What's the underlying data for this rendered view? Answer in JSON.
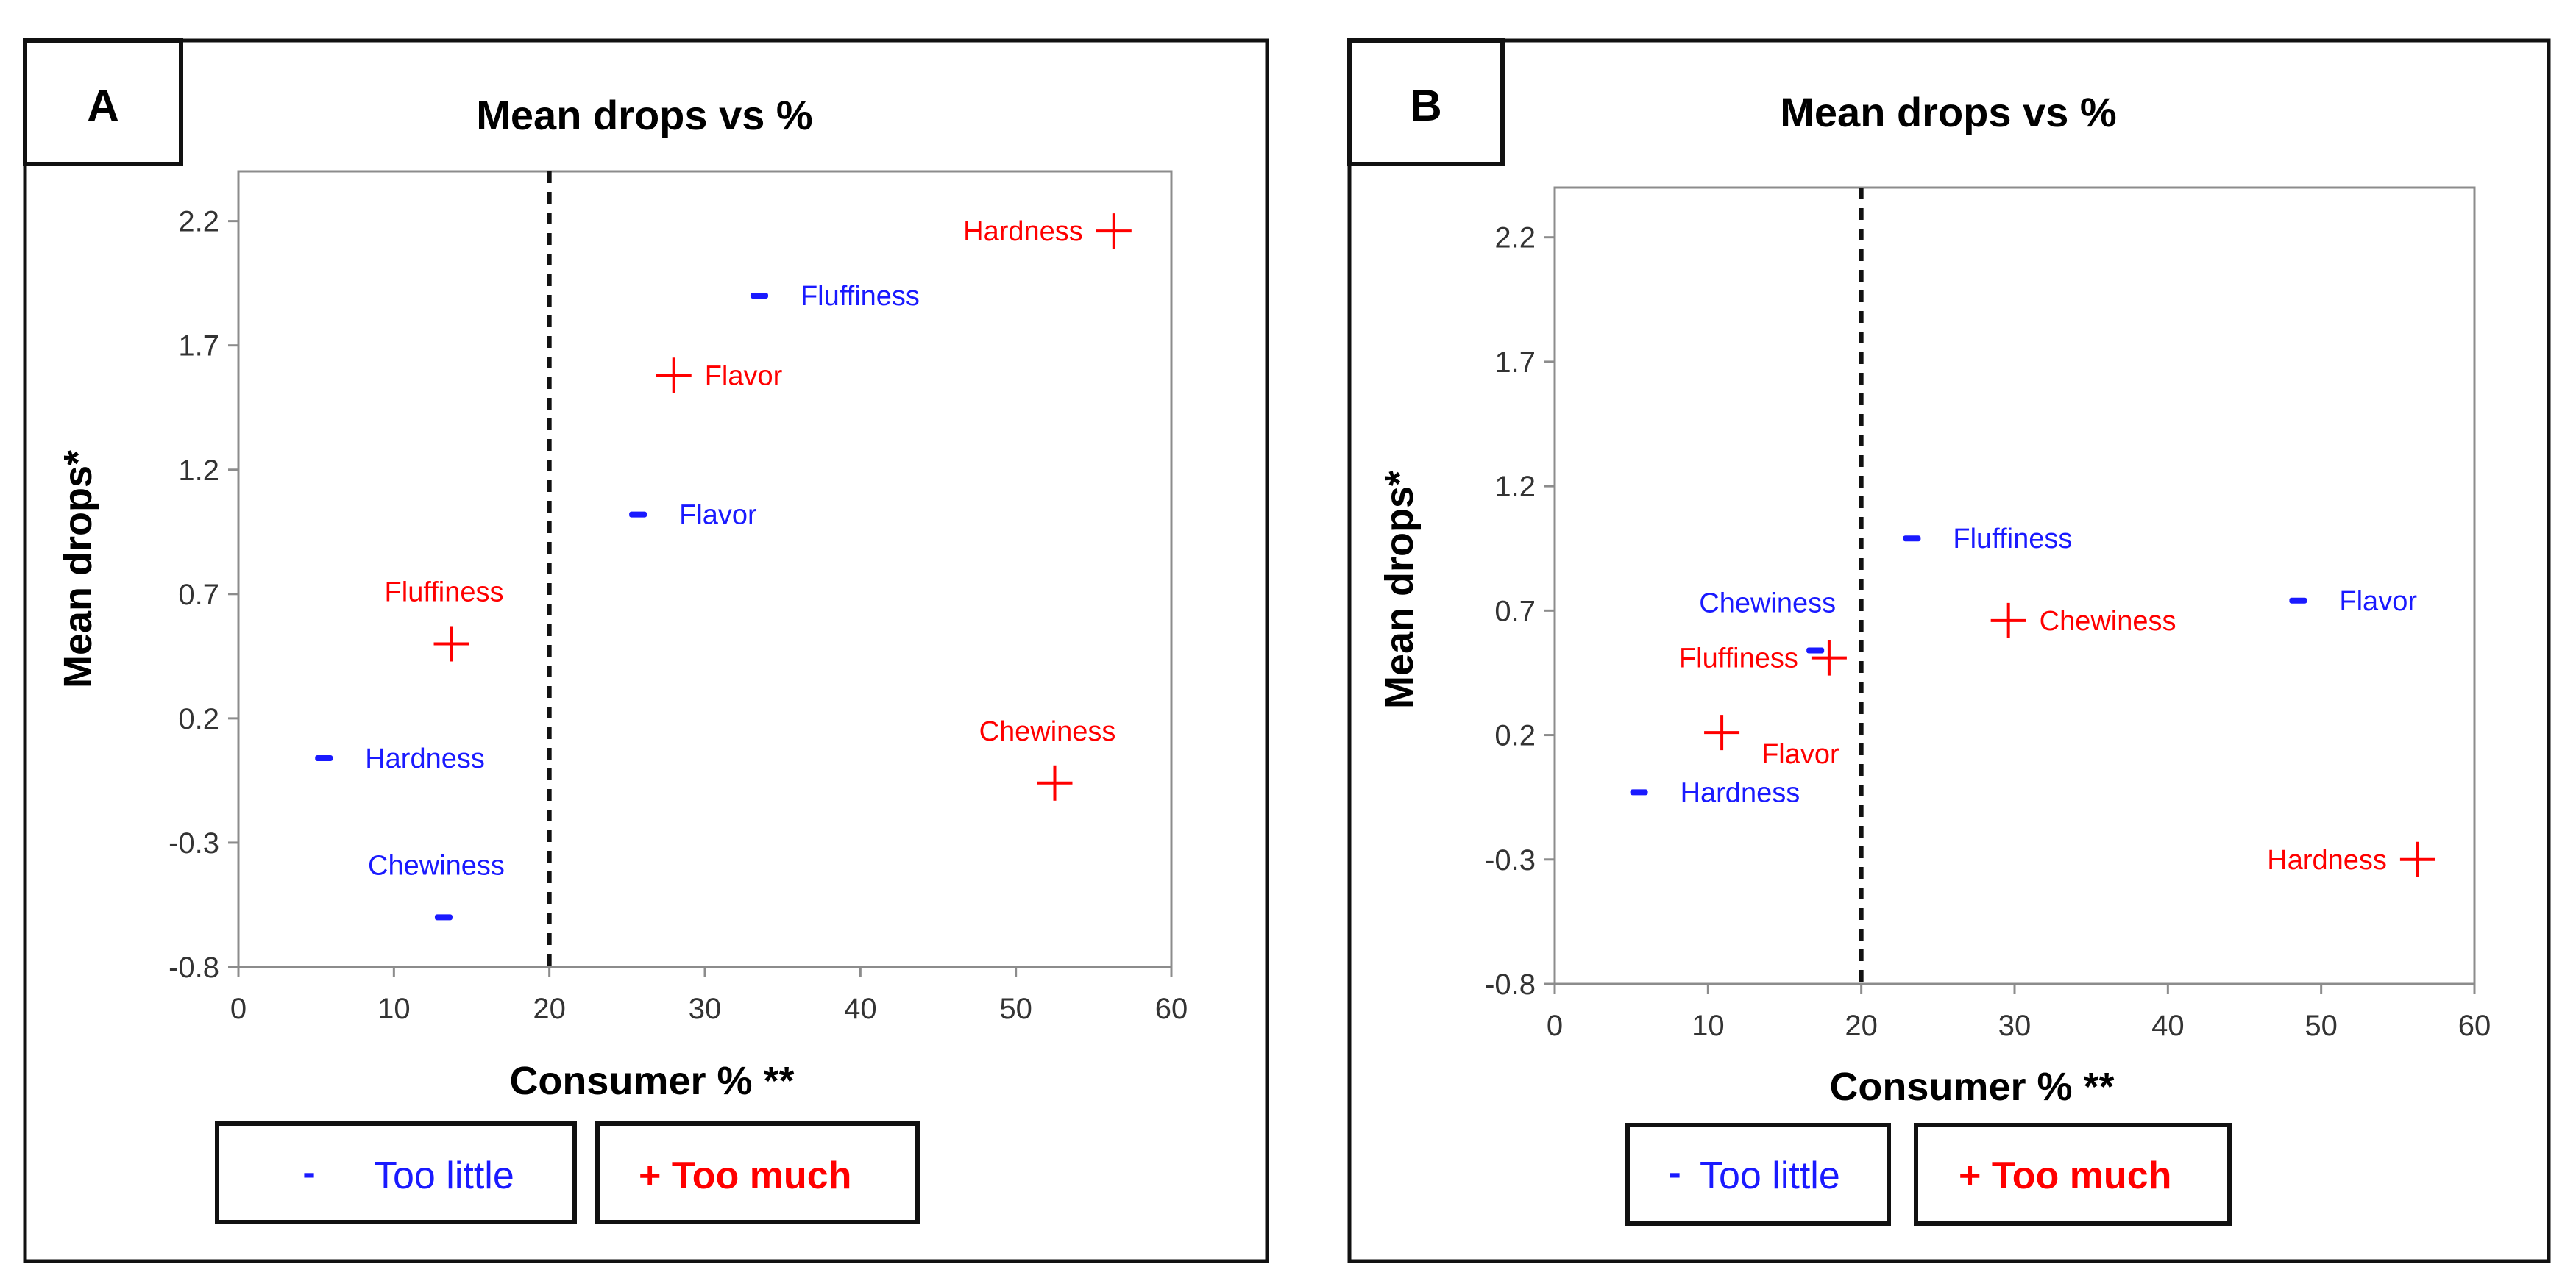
{
  "colors": {
    "too_little": "#1a1aff",
    "too_much": "#ff0000",
    "axis": "#8c8c8c",
    "text": "#000000"
  },
  "chart_data": [
    {
      "panel": "A",
      "type": "scatter",
      "title": "Mean drops vs %",
      "xlabel": "Consumer % **",
      "ylabel": "Mean drops*",
      "xlim": [
        0,
        60
      ],
      "ylim": [
        -0.8,
        2.4
      ],
      "xticks": [
        0,
        10,
        20,
        30,
        40,
        50,
        60
      ],
      "yticks": [
        -0.8,
        -0.3,
        0.2,
        0.7,
        1.2,
        1.7,
        2.2
      ],
      "xtick_labels": [
        "0",
        "10",
        "20",
        "30",
        "40",
        "50",
        "60"
      ],
      "ytick_labels": [
        "-0.8",
        "-0.3",
        "0.2",
        "0.7",
        "1.2",
        "1.7",
        "2.2"
      ],
      "reference_line_x": 20,
      "grid": false,
      "series": [
        {
          "name": "Too little",
          "symbol": "-",
          "color": "#1a1aff",
          "points": [
            {
              "label": "Fluffiness",
              "x": 33.5,
              "y": 1.9,
              "label_pos": "right"
            },
            {
              "label": "Flavor",
              "x": 25.7,
              "y": 1.02,
              "label_pos": "right"
            },
            {
              "label": "Hardness",
              "x": 5.5,
              "y": 0.04,
              "label_pos": "right"
            },
            {
              "label": "Chewiness",
              "x": 13.2,
              "y": -0.6,
              "label_pos": "above"
            }
          ]
        },
        {
          "name": "Too much",
          "symbol": "+",
          "color": "#ff0000",
          "points": [
            {
              "label": "Hardness",
              "x": 56.3,
              "y": 2.16,
              "label_pos": "left"
            },
            {
              "label": "Flavor",
              "x": 28.0,
              "y": 1.58,
              "label_pos": "right"
            },
            {
              "label": "Fluffiness",
              "x": 13.7,
              "y": 0.5,
              "label_pos": "above"
            },
            {
              "label": "Chewiness",
              "x": 52.5,
              "y": -0.06,
              "label_pos": "above"
            }
          ]
        }
      ],
      "legend": {
        "too_little_symbol": "-",
        "too_little_label": "Too little",
        "too_much_label": "+ Too much",
        "placement": "bottom"
      }
    },
    {
      "panel": "B",
      "type": "scatter",
      "title": "Mean drops vs %",
      "xlabel": "Consumer % **",
      "ylabel": "Mean drops*",
      "xlim": [
        0,
        60
      ],
      "ylim": [
        -0.8,
        2.4
      ],
      "xticks": [
        0,
        10,
        20,
        30,
        40,
        50,
        60
      ],
      "yticks": [
        -0.8,
        -0.3,
        0.2,
        0.7,
        1.2,
        1.7,
        2.2
      ],
      "xtick_labels": [
        "0",
        "10",
        "20",
        "30",
        "40",
        "50",
        "60"
      ],
      "ytick_labels": [
        "-0.8",
        "-0.3",
        "0.2",
        "0.7",
        "1.2",
        "1.7",
        "2.2"
      ],
      "reference_line_x": 20,
      "grid": false,
      "series": [
        {
          "name": "Too little",
          "symbol": "-",
          "color": "#1a1aff",
          "points": [
            {
              "label": "Fluffiness",
              "x": 23.3,
              "y": 0.99,
              "label_pos": "right"
            },
            {
              "label": "Flavor",
              "x": 48.5,
              "y": 0.74,
              "label_pos": "right"
            },
            {
              "label": "Chewiness",
              "x": 17.0,
              "y": 0.54,
              "label_pos": "above-left"
            },
            {
              "label": "Hardness",
              "x": 5.5,
              "y": -0.03,
              "label_pos": "right"
            }
          ]
        },
        {
          "name": "Too much",
          "symbol": "+",
          "color": "#ff0000",
          "points": [
            {
              "label": "Chewiness",
              "x": 29.6,
              "y": 0.66,
              "label_pos": "right"
            },
            {
              "label": "Fluffiness",
              "x": 17.9,
              "y": 0.51,
              "label_pos": "left"
            },
            {
              "label": "Flavor",
              "x": 10.9,
              "y": 0.21,
              "label_pos": "below-right"
            },
            {
              "label": "Hardness",
              "x": 56.3,
              "y": -0.3,
              "label_pos": "left"
            }
          ]
        }
      ],
      "legend": {
        "too_little_symbol": "-",
        "too_little_label": "Too little",
        "too_much_label": "+ Too much",
        "placement": "bottom"
      }
    }
  ]
}
